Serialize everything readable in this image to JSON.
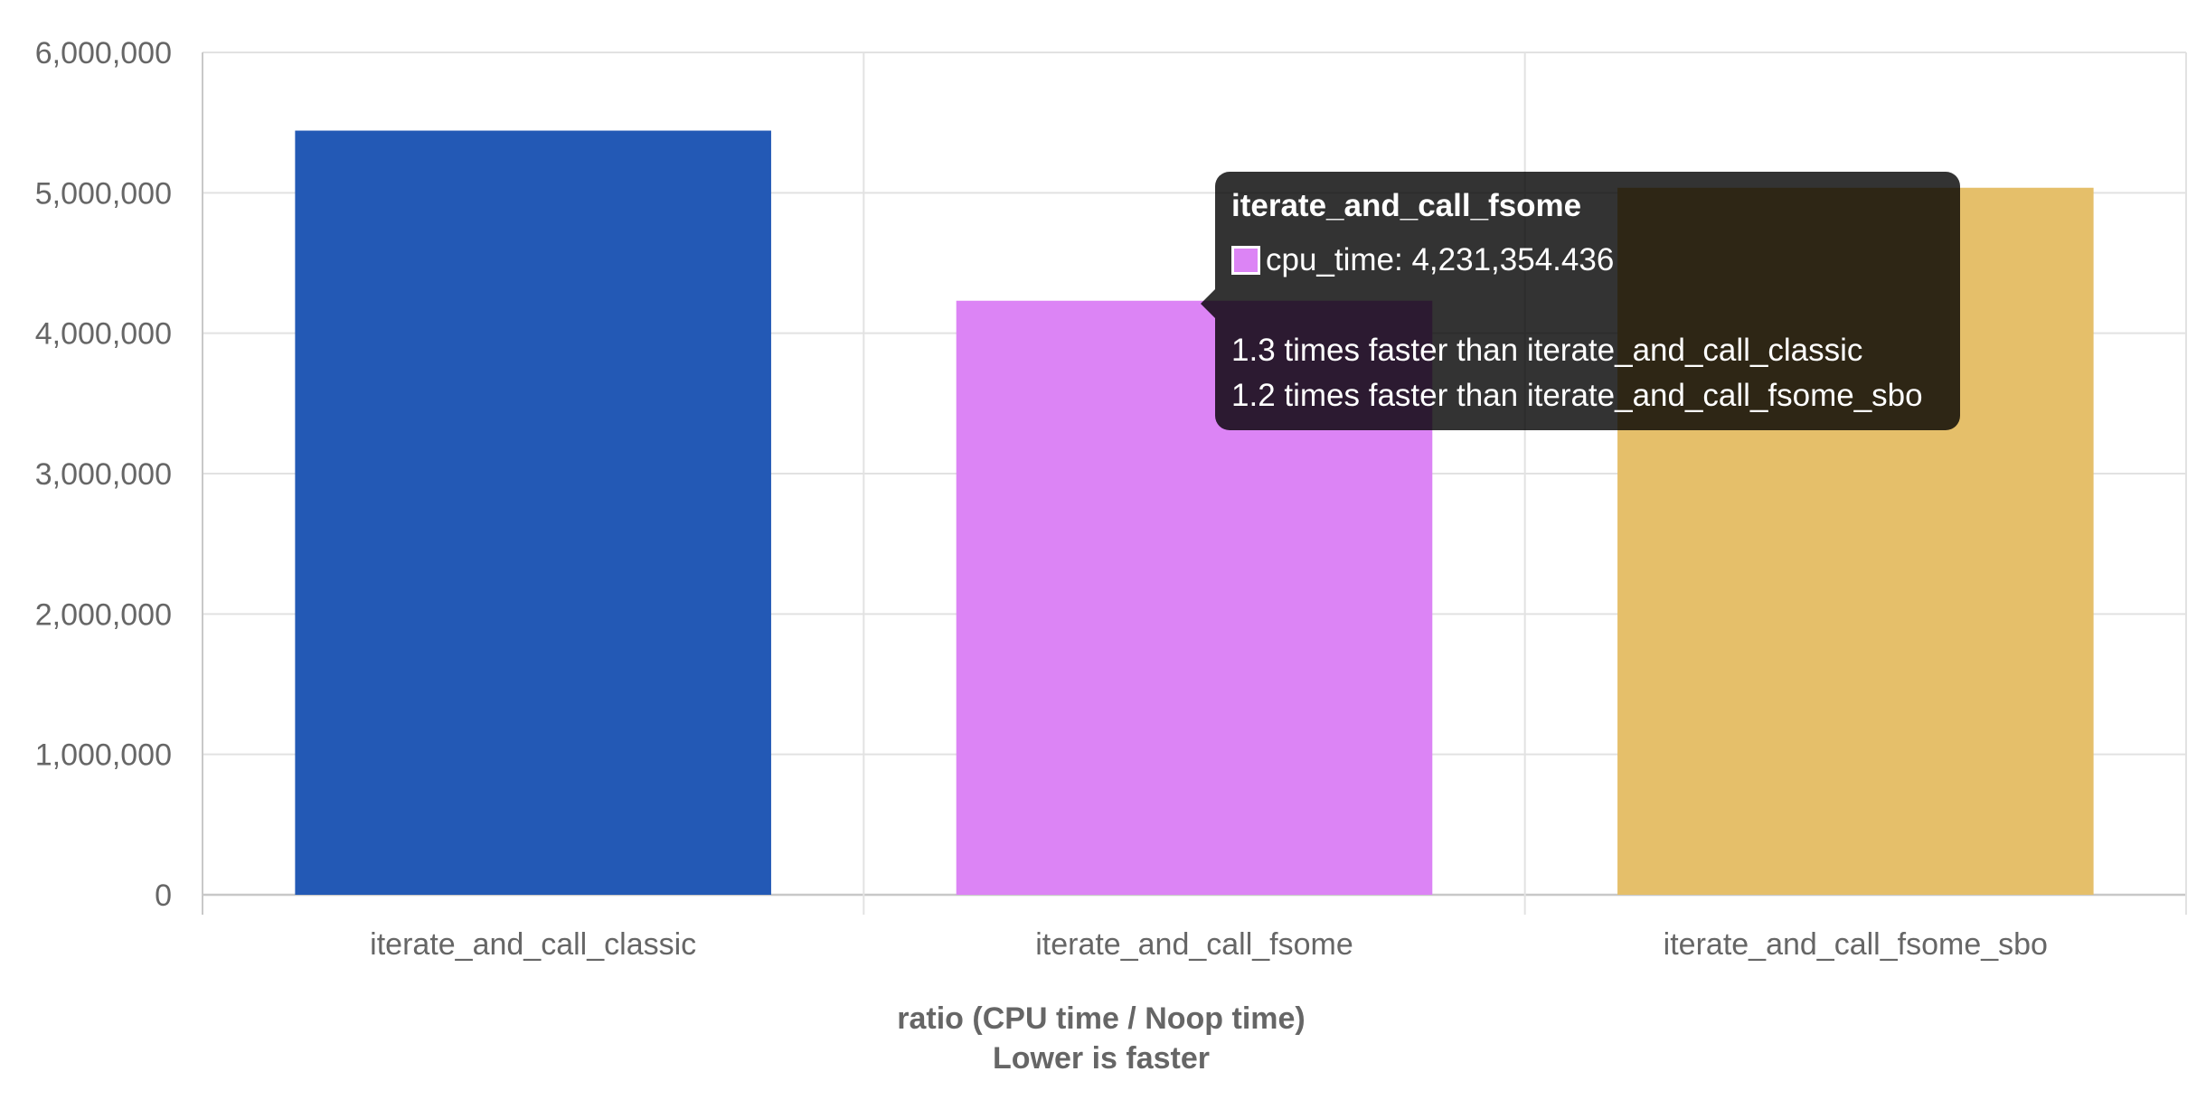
{
  "chart_data": {
    "type": "bar",
    "categories": [
      "iterate_and_call_classic",
      "iterate_and_call_fsome",
      "iterate_and_call_fsome_sbo"
    ],
    "series": [
      {
        "name": "cpu_time",
        "values": [
          5443000,
          4231354.436,
          5036000
        ],
        "colors": [
          "#2359b5",
          "#dc84f5",
          "#e5bf6a"
        ]
      }
    ],
    "ylim": [
      0,
      6000000
    ],
    "yticks": [
      "0",
      "1,000,000",
      "2,000,000",
      "3,000,000",
      "4,000,000",
      "5,000,000",
      "6,000,000"
    ],
    "xlabel": "ratio (CPU time / Noop time)\nLower is faster",
    "xlabel_lines": [
      "ratio (CPU time / Noop time)",
      "Lower is faster"
    ],
    "ylabel": "",
    "grid": true,
    "legend": "none"
  },
  "tooltip": {
    "title": "iterate_and_call_fsome",
    "label": "cpu_time: 4,231,354.436",
    "swatch_color": "#dc84f5",
    "lines": [
      "1.3 times faster than iterate_and_call_classic",
      "1.2 times faster than iterate_and_call_fsome_sbo"
    ]
  }
}
